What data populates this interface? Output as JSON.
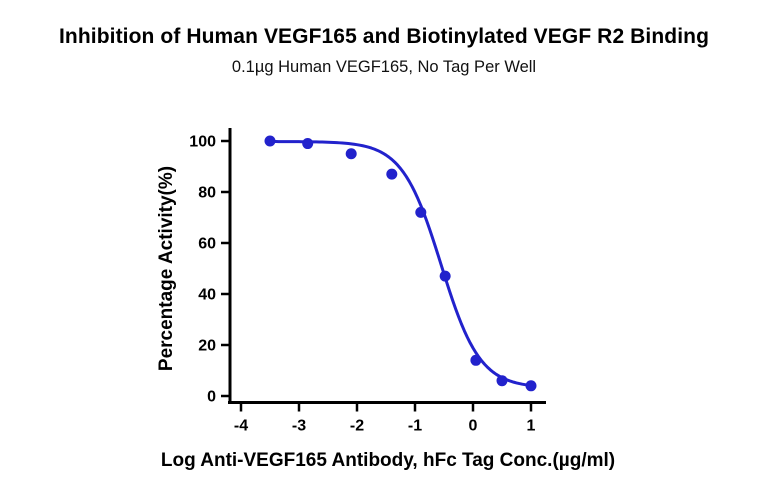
{
  "chart_data": {
    "type": "scatter",
    "title": "Inhibition of Human VEGF165 and Biotinylated VEGF R2 Binding",
    "subtitle": "0.1µg Human VEGF165, No Tag Per Well",
    "xlabel": "Log Anti-VEGF165 Antibody, hFc Tag Conc.(µg/ml)",
    "ylabel": "Percentage Activity(%)",
    "xlim": [
      -4,
      1
    ],
    "ylim": [
      0,
      100
    ],
    "x_ticks": [
      -4,
      -3,
      -2,
      -1,
      0,
      1
    ],
    "y_ticks": [
      0,
      20,
      40,
      60,
      80,
      100
    ],
    "grid": false,
    "legend": "none",
    "series": [
      {
        "name": "Anti-VEGF165 Antibody, hFc Tag",
        "x": [
          -3.5,
          -2.85,
          -2.1,
          -1.4,
          -0.9,
          -0.48,
          0.05,
          0.5,
          1.0
        ],
        "y": [
          100,
          99,
          95,
          87,
          72,
          47,
          14,
          6,
          4
        ],
        "color": "#2222CC",
        "marker": "circle"
      }
    ],
    "fit": {
      "model": "4PL-inhibition",
      "top": 99.8,
      "bottom": 3.2,
      "log_ic50": -0.55,
      "hill": 1.3,
      "x_range": [
        -3.55,
        1.0
      ]
    },
    "colors": {
      "curve": "#2222CC",
      "axis": "#000000",
      "text": "#000000"
    }
  }
}
